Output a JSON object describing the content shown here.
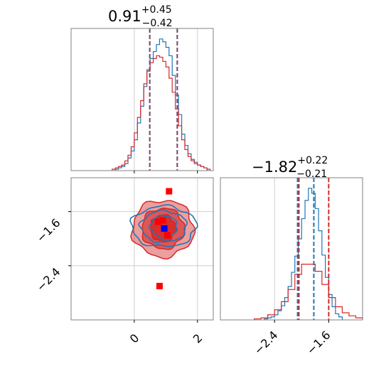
{
  "chart_data": [
    {
      "type": "histogram",
      "panel": "marginal-param-1",
      "title": {
        "median": "0.91",
        "plus": "+0.45",
        "minus": "−0.42"
      },
      "xlim": [
        -2.0,
        2.5
      ],
      "grid_x": [
        0,
        2
      ],
      "grid": true,
      "series": [
        {
          "color": "#1f77b4",
          "bin_edges": [
            -0.6,
            -0.5,
            -0.4,
            -0.3,
            -0.2,
            -0.1,
            0.0,
            0.1,
            0.2,
            0.3,
            0.4,
            0.5,
            0.6,
            0.7,
            0.8,
            0.9,
            1.0,
            1.1,
            1.2,
            1.3,
            1.4,
            1.5,
            1.6,
            1.7,
            1.8,
            1.9,
            2.0,
            2.1,
            2.2,
            2.3
          ],
          "counts": [
            1,
            2,
            3,
            5,
            9,
            14,
            22,
            34,
            46,
            60,
            72,
            80,
            85,
            90,
            94,
            92,
            88,
            82,
            68,
            54,
            40,
            26,
            18,
            12,
            8,
            6,
            4,
            3,
            2
          ]
        },
        {
          "color": "#d62728",
          "bin_edges": [
            -0.7,
            -0.6,
            -0.5,
            -0.4,
            -0.3,
            -0.2,
            -0.1,
            0.0,
            0.1,
            0.2,
            0.3,
            0.4,
            0.5,
            0.6,
            0.7,
            0.8,
            0.9,
            1.0,
            1.1,
            1.2,
            1.3,
            1.4,
            1.5,
            1.6,
            1.7,
            1.8,
            1.9,
            2.0,
            2.1,
            2.2,
            2.3,
            2.4
          ],
          "counts": [
            1,
            2,
            3,
            4,
            7,
            11,
            17,
            27,
            38,
            50,
            62,
            71,
            77,
            80,
            82,
            81,
            78,
            74,
            66,
            56,
            44,
            32,
            22,
            15,
            10,
            7,
            5,
            4,
            3,
            2,
            1
          ]
        }
      ],
      "quantile_lines": [
        {
          "color": "#d62728",
          "values": [
            0.49,
            1.36
          ]
        },
        {
          "color": "#1f77b4",
          "values": [
            0.49,
            1.36
          ]
        }
      ]
    },
    {
      "type": "histogram",
      "panel": "marginal-param-2",
      "title": {
        "median": "−1.82",
        "plus": "+0.22",
        "minus": "−0.21"
      },
      "xlim": [
        -3.2,
        -1.1
      ],
      "grid_x": [
        -2.4,
        -1.6
      ],
      "grid": true,
      "series": [
        {
          "color": "#1f77b4",
          "bin_edges": [
            -2.55,
            -2.5,
            -2.45,
            -2.4,
            -2.35,
            -2.3,
            -2.25,
            -2.2,
            -2.15,
            -2.1,
            -2.05,
            -2.0,
            -1.95,
            -1.9,
            -1.85,
            -1.8,
            -1.75,
            -1.7,
            -1.65,
            -1.6,
            -1.55,
            -1.5,
            -1.45,
            -1.4
          ],
          "counts": [
            1,
            2,
            3,
            5,
            9,
            14,
            22,
            33,
            47,
            63,
            80,
            100,
            118,
            130,
            125,
            110,
            88,
            64,
            42,
            25,
            13,
            6,
            3
          ]
        },
        {
          "color": "#d62728",
          "bin_edges": [
            -2.7,
            -2.6,
            -2.5,
            -2.4,
            -2.3,
            -2.2,
            -2.1,
            -2.0,
            -1.9,
            -1.8,
            -1.7,
            -1.6,
            -1.5,
            -1.4,
            -1.3,
            -1.2,
            -1.1
          ],
          "counts": [
            1,
            2,
            5,
            10,
            18,
            30,
            45,
            55,
            55,
            48,
            35,
            22,
            13,
            7,
            4,
            2
          ]
        }
      ],
      "quantile_lines": [
        {
          "color": "#d62728",
          "values": [
            -2.04,
            -1.6
          ]
        },
        {
          "color": "#1f77b4",
          "values": [
            -2.06,
            -1.82
          ]
        }
      ]
    },
    {
      "type": "contour",
      "panel": "joint-param-1-param-2",
      "xlim": [
        -2.0,
        2.5
      ],
      "ylim": [
        -3.2,
        -1.1
      ],
      "grid_x": [
        0,
        2
      ],
      "grid_y": [
        -1.6,
        -2.4
      ],
      "grid": true,
      "contour_sets": [
        {
          "color": "#d62728",
          "filled": true,
          "levels": [
            {
              "cx": 0.91,
              "cy": -1.85,
              "rx": 1.95,
              "ry": 0.42,
              "opacity": 0.45
            },
            {
              "cx": 0.91,
              "cy": -1.85,
              "rx": 1.35,
              "ry": 0.3,
              "opacity": 0.6
            },
            {
              "cx": 0.91,
              "cy": -1.85,
              "rx": 0.8,
              "ry": 0.2,
              "opacity": 0.85
            }
          ]
        },
        {
          "color": "#1f77b4",
          "filled": false,
          "levels": [
            {
              "cx": 0.93,
              "cy": -1.82,
              "rx": 2.05,
              "ry": 0.3
            },
            {
              "cx": 0.93,
              "cy": -1.82,
              "rx": 1.45,
              "ry": 0.23
            },
            {
              "cx": 0.93,
              "cy": -1.82,
              "rx": 0.85,
              "ry": 0.16
            }
          ]
        }
      ],
      "points": [
        {
          "x": 1.1,
          "y": -1.3,
          "color": "#ff0000"
        },
        {
          "x": 0.8,
          "y": -2.7,
          "color": "#ff0000"
        },
        {
          "x": 0.9,
          "y": -1.73,
          "color": "#ff0000"
        },
        {
          "x": 0.75,
          "y": -1.75,
          "color": "#ff0000"
        },
        {
          "x": 1.05,
          "y": -1.95,
          "color": "#ff0000"
        },
        {
          "x": 0.95,
          "y": -1.85,
          "color": "#0000ff"
        }
      ]
    }
  ],
  "ticks": {
    "bottom_x": [
      "0",
      "2"
    ],
    "bottom_right_x": [
      "−2.4",
      "−1.6"
    ],
    "left_y": [
      "−1.6",
      "−2.4"
    ]
  }
}
